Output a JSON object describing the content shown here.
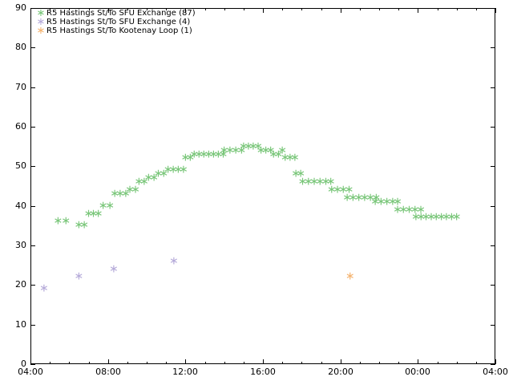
{
  "chart_data": {
    "type": "scatter",
    "title": "",
    "xlabel": "",
    "ylabel": "",
    "marker_glyph": "∗",
    "axis_color": "#000000",
    "x_axis": {
      "tick_labels": [
        "04:00",
        "08:00",
        "12:00",
        "16:00",
        "20:00",
        "00:00",
        "04:00"
      ],
      "tick_hours": [
        4,
        8,
        12,
        16,
        20,
        24,
        28
      ],
      "minor_tick_interval_hours": 1,
      "range_hours": [
        4,
        28
      ]
    },
    "y_axis": {
      "tick_labels": [
        "0",
        "10",
        "20",
        "30",
        "40",
        "50",
        "60",
        "70",
        "80",
        "90"
      ],
      "ticks": [
        0,
        10,
        20,
        30,
        40,
        50,
        60,
        70,
        80,
        90
      ],
      "range": [
        0,
        90
      ]
    },
    "grid": false,
    "legend_position": "top-left-inside",
    "series": [
      {
        "name": "R5 Hastings St/To SFU Exchange (87)",
        "color": "#79c679",
        "count": 87,
        "points": [
          [
            5.42,
            36
          ],
          [
            5.83,
            36
          ],
          [
            6.5,
            35
          ],
          [
            6.78,
            35
          ],
          [
            7.0,
            38
          ],
          [
            7.25,
            38
          ],
          [
            7.5,
            38
          ],
          [
            7.75,
            40
          ],
          [
            8.1,
            40
          ],
          [
            8.35,
            43
          ],
          [
            8.63,
            43
          ],
          [
            8.92,
            43
          ],
          [
            9.13,
            44
          ],
          [
            9.42,
            44
          ],
          [
            9.6,
            46
          ],
          [
            9.87,
            46
          ],
          [
            10.1,
            47
          ],
          [
            10.38,
            47
          ],
          [
            10.6,
            48
          ],
          [
            10.88,
            48
          ],
          [
            11.1,
            49
          ],
          [
            11.37,
            49
          ],
          [
            11.63,
            49
          ],
          [
            11.9,
            49
          ],
          [
            12.0,
            52
          ],
          [
            12.25,
            52
          ],
          [
            12.45,
            53
          ],
          [
            12.7,
            53
          ],
          [
            12.95,
            53
          ],
          [
            13.2,
            53
          ],
          [
            13.45,
            53
          ],
          [
            13.7,
            53
          ],
          [
            13.95,
            53
          ],
          [
            14.0,
            54
          ],
          [
            14.3,
            54
          ],
          [
            14.6,
            54
          ],
          [
            14.9,
            54
          ],
          [
            15.0,
            55
          ],
          [
            15.25,
            55
          ],
          [
            15.5,
            55
          ],
          [
            15.75,
            55
          ],
          [
            15.9,
            54
          ],
          [
            16.15,
            54
          ],
          [
            16.4,
            54
          ],
          [
            16.55,
            53
          ],
          [
            16.8,
            53
          ],
          [
            17.0,
            54
          ],
          [
            17.15,
            52
          ],
          [
            17.4,
            52
          ],
          [
            17.65,
            52
          ],
          [
            17.7,
            48
          ],
          [
            17.95,
            48
          ],
          [
            18.05,
            46
          ],
          [
            18.35,
            46
          ],
          [
            18.65,
            46
          ],
          [
            18.95,
            46
          ],
          [
            19.25,
            46
          ],
          [
            19.5,
            46
          ],
          [
            19.55,
            44
          ],
          [
            19.85,
            44
          ],
          [
            20.15,
            44
          ],
          [
            20.45,
            44
          ],
          [
            20.35,
            42
          ],
          [
            20.65,
            42
          ],
          [
            20.95,
            42
          ],
          [
            21.25,
            42
          ],
          [
            21.55,
            42
          ],
          [
            21.85,
            42
          ],
          [
            21.8,
            41
          ],
          [
            22.1,
            41
          ],
          [
            22.4,
            41
          ],
          [
            22.7,
            41
          ],
          [
            22.95,
            41
          ],
          [
            22.95,
            39
          ],
          [
            23.25,
            39
          ],
          [
            23.55,
            39
          ],
          [
            23.85,
            39
          ],
          [
            24.15,
            39
          ],
          [
            23.9,
            37
          ],
          [
            24.16,
            37
          ],
          [
            24.42,
            37
          ],
          [
            24.69,
            37
          ],
          [
            24.95,
            37
          ],
          [
            25.21,
            37
          ],
          [
            25.47,
            37
          ],
          [
            25.74,
            37
          ],
          [
            26.0,
            37
          ]
        ]
      },
      {
        "name": "R5 Hastings St/To SFU Exchange (4)",
        "color": "#b5aad9",
        "count": 4,
        "points": [
          [
            4.7,
            19
          ],
          [
            6.5,
            22
          ],
          [
            8.3,
            24
          ],
          [
            11.4,
            26
          ]
        ]
      },
      {
        "name": "R5 Hastings St/To Kootenay Loop (1)",
        "color": "#f4b26e",
        "count": 1,
        "points": [
          [
            20.5,
            22
          ]
        ]
      }
    ]
  }
}
